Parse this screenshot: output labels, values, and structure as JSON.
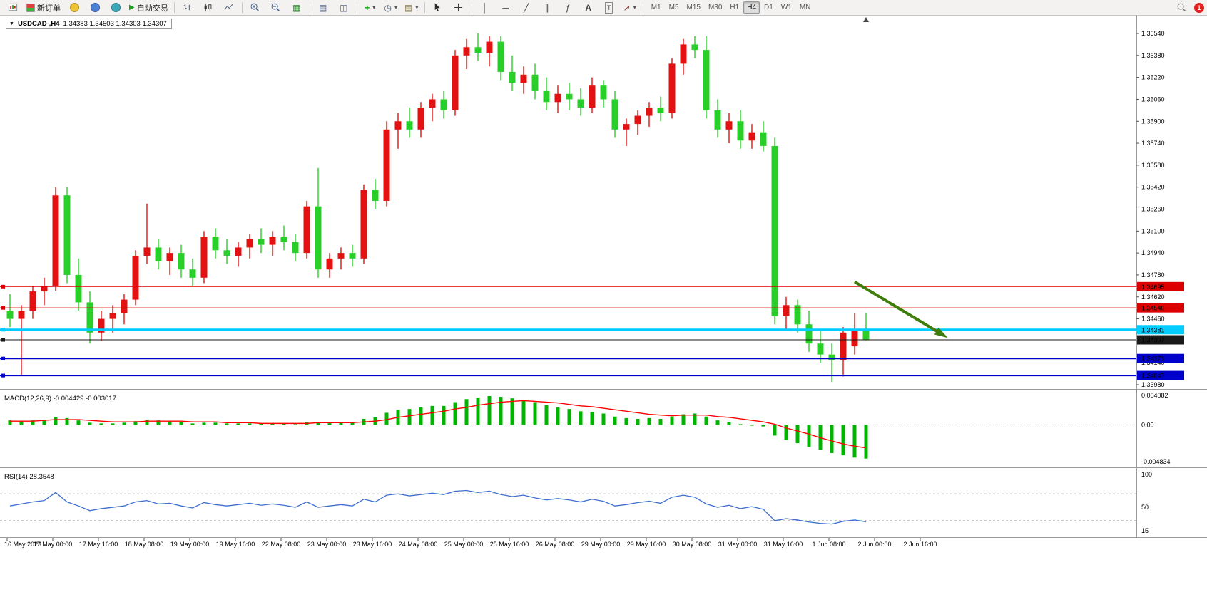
{
  "toolbar": {
    "new_order_label": "新订单",
    "autotrading_label": "自动交易",
    "timeframes": [
      "M1",
      "M5",
      "M15",
      "M30",
      "H1",
      "H4",
      "D1",
      "W1",
      "MN"
    ],
    "active_timeframe": "H4",
    "notification_count": "1"
  },
  "icons": {
    "dropdown": "▾",
    "down_triangle": "▼",
    "play": "▶",
    "plus": "+",
    "minus": "−",
    "grid": "▦",
    "doc": "▤",
    "window": "◫",
    "clock": "◷",
    "crosshair": "+",
    "vline": "│",
    "hline": "─",
    "trendline": "╱",
    "channel": "∥",
    "fibo": "ƒ",
    "text": "A",
    "label": "T",
    "arrow_tool": "↗"
  },
  "chart": {
    "title": "USDCAD-,H4",
    "ohlc_text": "1.34383 1.34503 1.34303 1.34307"
  },
  "chart_data": {
    "type": "candlestick",
    "symbol": "USDCAD",
    "period": "H4",
    "colors": {
      "up": "#e31212",
      "down": "#28cf28",
      "macd_histogram": "#00b400",
      "macd_signal": "#ff0000",
      "rsi_line": "#3f6fce",
      "arrow": "#3f7d0a"
    },
    "price_axis": {
      "max": 1.3654,
      "min": 1.3398,
      "tick_labels": [
        "1.36540",
        "1.36380",
        "1.36220",
        "1.36060",
        "1.35900",
        "1.35740",
        "1.35580",
        "1.35420",
        "1.35260",
        "1.35100",
        "1.34940",
        "1.34780",
        "1.34620",
        "1.34460",
        "1.34300",
        "1.34140",
        "1.33980"
      ]
    },
    "candles": [
      [
        1.3452,
        1.3464,
        1.344,
        1.3446
      ],
      [
        1.3446,
        1.3456,
        1.3405,
        1.3452
      ],
      [
        1.3452,
        1.347,
        1.3446,
        1.3466
      ],
      [
        1.3466,
        1.3476,
        1.3456,
        1.347
      ],
      [
        1.347,
        1.3542,
        1.3466,
        1.3536
      ],
      [
        1.3536,
        1.3542,
        1.3472,
        1.3478
      ],
      [
        1.3478,
        1.349,
        1.3452,
        1.3458
      ],
      [
        1.3458,
        1.3466,
        1.3428,
        1.3436
      ],
      [
        1.3436,
        1.3452,
        1.343,
        1.3446
      ],
      [
        1.3446,
        1.3456,
        1.3436,
        1.345
      ],
      [
        1.345,
        1.3464,
        1.3442,
        1.346
      ],
      [
        1.346,
        1.3496,
        1.3456,
        1.3492
      ],
      [
        1.3492,
        1.353,
        1.3486,
        1.3498
      ],
      [
        1.3498,
        1.3504,
        1.3482,
        1.3488
      ],
      [
        1.3488,
        1.3498,
        1.3478,
        1.3494
      ],
      [
        1.3494,
        1.35,
        1.3476,
        1.3482
      ],
      [
        1.3482,
        1.349,
        1.347,
        1.3476
      ],
      [
        1.3476,
        1.351,
        1.3472,
        1.3506
      ],
      [
        1.3506,
        1.3512,
        1.349,
        1.3496
      ],
      [
        1.3496,
        1.3504,
        1.3486,
        1.3492
      ],
      [
        1.3492,
        1.3502,
        1.3484,
        1.3498
      ],
      [
        1.3498,
        1.3508,
        1.349,
        1.3504
      ],
      [
        1.3504,
        1.3512,
        1.3494,
        1.35
      ],
      [
        1.35,
        1.351,
        1.3492,
        1.3506
      ],
      [
        1.3506,
        1.3514,
        1.3496,
        1.3502
      ],
      [
        1.3502,
        1.3508,
        1.3488,
        1.3494
      ],
      [
        1.3494,
        1.3532,
        1.349,
        1.3528
      ],
      [
        1.3528,
        1.3556,
        1.3476,
        1.3482
      ],
      [
        1.3482,
        1.3494,
        1.3476,
        1.349
      ],
      [
        1.349,
        1.3498,
        1.3482,
        1.3494
      ],
      [
        1.3494,
        1.35,
        1.3484,
        1.349
      ],
      [
        1.349,
        1.3544,
        1.3486,
        1.354
      ],
      [
        1.354,
        1.3548,
        1.3526,
        1.3532
      ],
      [
        1.3532,
        1.359,
        1.3528,
        1.3584
      ],
      [
        1.3584,
        1.3596,
        1.357,
        1.359
      ],
      [
        1.359,
        1.36,
        1.3578,
        1.3584
      ],
      [
        1.3584,
        1.3604,
        1.3578,
        1.36
      ],
      [
        1.36,
        1.361,
        1.359,
        1.3606
      ],
      [
        1.3606,
        1.3612,
        1.3592,
        1.3598
      ],
      [
        1.3598,
        1.3642,
        1.3594,
        1.3638
      ],
      [
        1.3638,
        1.365,
        1.3628,
        1.3644
      ],
      [
        1.3644,
        1.3654,
        1.3634,
        1.364
      ],
      [
        1.364,
        1.3652,
        1.363,
        1.3648
      ],
      [
        1.3648,
        1.3652,
        1.362,
        1.3626
      ],
      [
        1.3626,
        1.3638,
        1.3612,
        1.3618
      ],
      [
        1.3618,
        1.363,
        1.361,
        1.3624
      ],
      [
        1.3624,
        1.3632,
        1.3606,
        1.3612
      ],
      [
        1.3612,
        1.3622,
        1.3598,
        1.3604
      ],
      [
        1.3604,
        1.3616,
        1.3596,
        1.361
      ],
      [
        1.361,
        1.3618,
        1.3598,
        1.3606
      ],
      [
        1.3606,
        1.3614,
        1.3594,
        1.36
      ],
      [
        1.36,
        1.3622,
        1.3596,
        1.3616
      ],
      [
        1.3616,
        1.362,
        1.36,
        1.3606
      ],
      [
        1.3606,
        1.3612,
        1.3578,
        1.3584
      ],
      [
        1.3584,
        1.3592,
        1.3572,
        1.3588
      ],
      [
        1.3588,
        1.3598,
        1.358,
        1.3594
      ],
      [
        1.3594,
        1.3604,
        1.3586,
        1.36
      ],
      [
        1.36,
        1.3608,
        1.359,
        1.3596
      ],
      [
        1.3596,
        1.3636,
        1.3592,
        1.3632
      ],
      [
        1.3632,
        1.365,
        1.3624,
        1.3646
      ],
      [
        1.3646,
        1.3652,
        1.3636,
        1.3642
      ],
      [
        1.3642,
        1.3652,
        1.3592,
        1.3598
      ],
      [
        1.3598,
        1.3606,
        1.3578,
        1.3584
      ],
      [
        1.3584,
        1.3596,
        1.3574,
        1.359
      ],
      [
        1.359,
        1.3598,
        1.357,
        1.3576
      ],
      [
        1.3576,
        1.3588,
        1.357,
        1.3582
      ],
      [
        1.3582,
        1.359,
        1.3568,
        1.3572
      ],
      [
        1.3572,
        1.3578,
        1.3442,
        1.3448
      ],
      [
        1.3448,
        1.3462,
        1.3438,
        1.3456
      ],
      [
        1.3456,
        1.346,
        1.3436,
        1.3442
      ],
      [
        1.3442,
        1.3452,
        1.3422,
        1.3428
      ],
      [
        1.3428,
        1.3438,
        1.3414,
        1.342
      ],
      [
        1.342,
        1.3428,
        1.34,
        1.3416
      ],
      [
        1.3416,
        1.344,
        1.3404,
        1.3436
      ],
      [
        1.3426,
        1.345,
        1.342,
        1.3438
      ],
      [
        1.34383,
        1.34503,
        1.34303,
        1.34307
      ]
    ],
    "levels": [
      {
        "price": 1.34695,
        "label": "1.34695",
        "color": "#dd0000",
        "text_color": "#ffffff",
        "width": 1
      },
      {
        "price": 1.3454,
        "label": "1.34540",
        "color": "#dd0000",
        "text_color": "#ffffff",
        "width": 1
      },
      {
        "price": 1.34381,
        "label": "1.34381",
        "color": "#00ccff",
        "text_color": "#000000",
        "width": 3
      },
      {
        "price": 1.34307,
        "label": "1.34307",
        "color": "#1a1a1a",
        "text_color": "#ffffff",
        "width": 1
      },
      {
        "price": 1.34171,
        "label": "1.34171",
        "color": "#0000cc",
        "text_color": "#ffffff",
        "width": 2
      },
      {
        "price": 1.34047,
        "label": "1.34047",
        "color": "#0000cc",
        "text_color": "#ffffff",
        "width": 2
      }
    ],
    "arrow": {
      "from_bar": 74,
      "from_price": 1.3473,
      "to_bar": 81.8,
      "to_price": 1.3434
    },
    "shift_marker_bar": 75,
    "indicators": {
      "macd": {
        "label": "MACD(12,26,9)",
        "values_text": "-0.004429 -0.003017",
        "axis": {
          "max": 0.004082,
          "min": -0.004834,
          "max_label": "0.004082",
          "mid_label": "0.00",
          "min_label": "-0.004834"
        },
        "histogram": [
          0.0006,
          0.0005,
          0.0006,
          0.0007,
          0.001,
          0.0009,
          0.0006,
          0.0003,
          0.0002,
          0.0002,
          0.0003,
          0.0005,
          0.0007,
          0.0006,
          0.0005,
          0.0004,
          0.0002,
          0.0003,
          0.0003,
          0.0002,
          0.0002,
          0.0002,
          0.0002,
          0.0002,
          0.0002,
          0.0001,
          0.0004,
          0.0004,
          0.0003,
          0.0003,
          0.0003,
          0.0008,
          0.001,
          0.0016,
          0.002,
          0.0021,
          0.0023,
          0.0025,
          0.0025,
          0.003,
          0.0034,
          0.0036,
          0.0038,
          0.0037,
          0.0035,
          0.0033,
          0.003,
          0.0026,
          0.0023,
          0.0021,
          0.0018,
          0.0017,
          0.0015,
          0.0011,
          0.0009,
          0.0008,
          0.0009,
          0.0008,
          0.0011,
          0.0014,
          0.0015,
          0.0011,
          0.0006,
          0.0004,
          0.0001,
          0.0,
          -0.0002,
          -0.0014,
          -0.002,
          -0.0024,
          -0.0029,
          -0.0033,
          -0.0037,
          -0.004,
          -0.0043,
          -0.004429
        ],
        "signal": [
          0.0005,
          0.0005,
          0.0005,
          0.0006,
          0.0007,
          0.0007,
          0.0007,
          0.0006,
          0.0005,
          0.0004,
          0.0004,
          0.0004,
          0.0005,
          0.0005,
          0.0005,
          0.0005,
          0.0004,
          0.0004,
          0.0004,
          0.0003,
          0.0003,
          0.0003,
          0.0002,
          0.0002,
          0.0002,
          0.0002,
          0.0002,
          0.0003,
          0.0003,
          0.0003,
          0.0003,
          0.0004,
          0.0005,
          0.0007,
          0.001,
          0.0012,
          0.0014,
          0.0016,
          0.0018,
          0.0021,
          0.0023,
          0.0026,
          0.0028,
          0.003,
          0.0031,
          0.0032,
          0.0031,
          0.003,
          0.0029,
          0.0027,
          0.0025,
          0.0024,
          0.0022,
          0.002,
          0.0018,
          0.0016,
          0.0014,
          0.0013,
          0.0012,
          0.0013,
          0.0013,
          0.0013,
          0.0011,
          0.001,
          0.0008,
          0.0006,
          0.0004,
          0.0001,
          -0.0004,
          -0.0008,
          -0.0012,
          -0.0017,
          -0.0021,
          -0.0025,
          -0.0028,
          -0.003017
        ]
      },
      "rsi": {
        "label": "RSI(14)",
        "value_text": "28.3548",
        "levels": [
          70,
          30
        ],
        "axis_labels": [
          "100",
          "50",
          "15"
        ],
        "series": [
          52,
          55,
          58,
          60,
          72,
          58,
          52,
          45,
          48,
          50,
          52,
          58,
          60,
          55,
          56,
          52,
          49,
          57,
          54,
          52,
          54,
          56,
          53,
          55,
          53,
          50,
          58,
          50,
          52,
          54,
          52,
          62,
          58,
          68,
          70,
          67,
          69,
          71,
          69,
          74,
          75,
          72,
          74,
          69,
          66,
          68,
          64,
          61,
          63,
          61,
          58,
          62,
          59,
          52,
          54,
          57,
          59,
          56,
          65,
          68,
          65,
          55,
          50,
          53,
          48,
          51,
          47,
          30,
          33,
          31,
          28,
          26,
          25,
          29,
          31,
          28.35
        ]
      }
    },
    "time_axis": [
      "16 May 2023",
      "17 May 00:00",
      "17 May 16:00",
      "18 May 08:00",
      "19 May 00:00",
      "19 May 16:00",
      "22 May 08:00",
      "23 May 00:00",
      "23 May 16:00",
      "24 May 08:00",
      "25 May 00:00",
      "25 May 16:00",
      "26 May 08:00",
      "29 May 00:00",
      "29 May 16:00",
      "30 May 08:00",
      "31 May 00:00",
      "31 May 16:00",
      "1 Jun 08:00",
      "2 Jun 00:00",
      "2 Jun 16:00"
    ]
  }
}
